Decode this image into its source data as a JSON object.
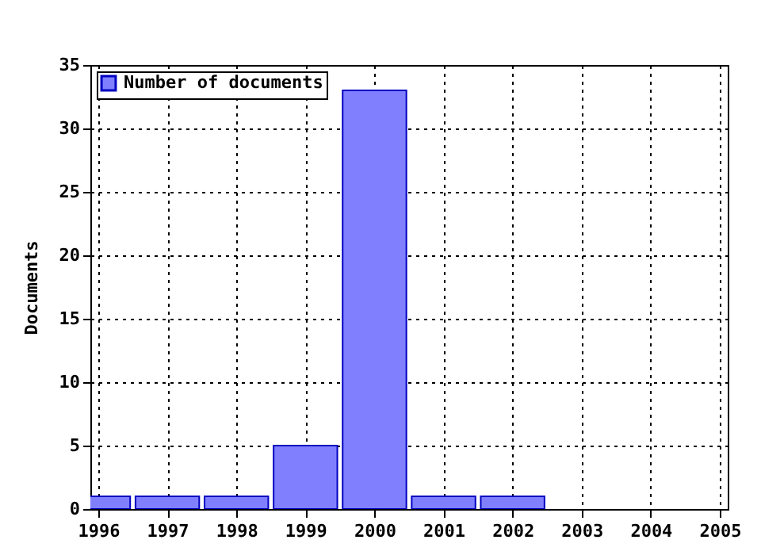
{
  "chart_data": {
    "type": "bar",
    "ylabel": "Documents",
    "x": [
      1996,
      1997,
      1998,
      1999,
      2000,
      2001,
      2002
    ],
    "series": [
      {
        "name": "Number of documents",
        "color": "#8080ff",
        "values": [
          1,
          1,
          1,
          5,
          33,
          1,
          1
        ]
      }
    ],
    "xlim": [
      1996,
      2005
    ],
    "xticks": [
      1996,
      1997,
      1998,
      1999,
      2000,
      2001,
      2002,
      2003,
      2004,
      2005
    ],
    "ylim": [
      0,
      35
    ],
    "yticks": [
      0,
      5,
      10,
      15,
      20,
      25,
      30,
      35
    ],
    "grid": true,
    "legend": "top left"
  }
}
